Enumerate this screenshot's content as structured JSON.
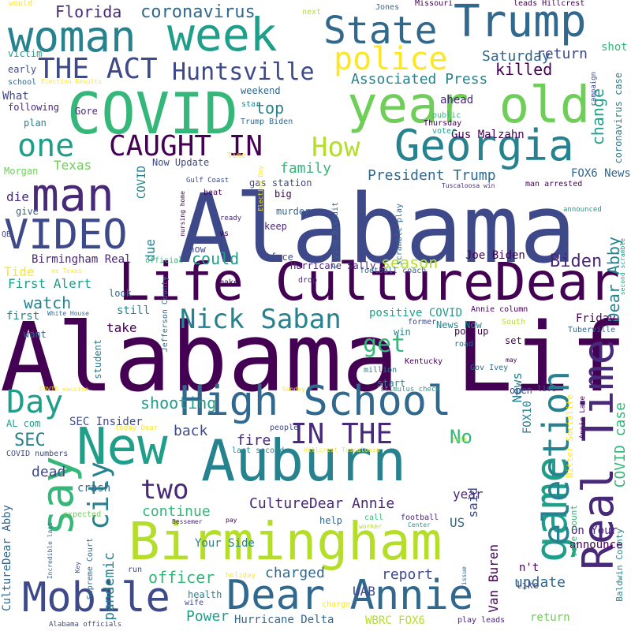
{
  "colors": {
    "v1": "#440154",
    "v2": "#482878",
    "v3": "#3e4989",
    "v4": "#31688e",
    "v5": "#26828e",
    "v6": "#1f9e89",
    "v7": "#35b779",
    "v8": "#6ece58",
    "v9": "#b5de2b",
    "v10": "#fde725"
  },
  "words": [
    {
      "id": "alabama-1",
      "text": "Alabama"
    },
    {
      "id": "alabama-life",
      "text": "Alabama Life"
    },
    {
      "id": "life-culturedear",
      "text": "Life CultureDear"
    },
    {
      "id": "covid",
      "text": "COVID"
    },
    {
      "id": "year-old",
      "text": "year old"
    },
    {
      "id": "woman",
      "text": "woman"
    },
    {
      "id": "week",
      "text": "week"
    },
    {
      "id": "trump",
      "text": "Trump"
    },
    {
      "id": "state",
      "text": "State"
    },
    {
      "id": "georgia",
      "text": "Georgia"
    },
    {
      "id": "man",
      "text": "man"
    },
    {
      "id": "video",
      "text": "VIDEO"
    },
    {
      "id": "new",
      "text": "New"
    },
    {
      "id": "auburn",
      "text": "Auburn"
    },
    {
      "id": "birmingham",
      "text": "Birmingham"
    },
    {
      "id": "high-school",
      "text": "High School"
    },
    {
      "id": "mobile",
      "text": "Mobile"
    },
    {
      "id": "dear-annie",
      "text": "Dear Annie"
    },
    {
      "id": "real-time",
      "text": "Real Time"
    },
    {
      "id": "game",
      "text": "game"
    },
    {
      "id": "election",
      "text": "election"
    },
    {
      "id": "say",
      "text": "say"
    },
    {
      "id": "police",
      "text": "police"
    },
    {
      "id": "the-act",
      "text": "THE ACT"
    },
    {
      "id": "huntsville",
      "text": "Huntsville"
    },
    {
      "id": "caught-in",
      "text": "CAUGHT IN"
    },
    {
      "id": "one",
      "text": "one"
    },
    {
      "id": "how",
      "text": "How"
    },
    {
      "id": "nick-saban",
      "text": "Nick Saban"
    },
    {
      "id": "day",
      "text": "Day"
    },
    {
      "id": "in-the",
      "text": "IN THE"
    },
    {
      "id": "city",
      "text": "city"
    },
    {
      "id": "two",
      "text": "two"
    },
    {
      "id": "get",
      "text": "get"
    },
    {
      "id": "florida",
      "text": "Florida"
    },
    {
      "id": "coronavirus",
      "text": "coronavirus"
    },
    {
      "id": "saturday",
      "text": "Saturday"
    },
    {
      "id": "killed",
      "text": "killed"
    },
    {
      "id": "associated-press",
      "text": "Associated Press"
    },
    {
      "id": "return",
      "text": "return"
    },
    {
      "id": "change",
      "text": "change"
    },
    {
      "id": "top",
      "text": "top"
    },
    {
      "id": "family",
      "text": "family"
    },
    {
      "id": "president-trump",
      "text": "President Trump"
    },
    {
      "id": "could",
      "text": "could"
    },
    {
      "id": "biden",
      "text": "Biden"
    },
    {
      "id": "watch",
      "text": "watch"
    },
    {
      "id": "season",
      "text": "season"
    },
    {
      "id": "dear-abby",
      "text": "Dear Abby"
    },
    {
      "id": "shooting",
      "text": "shooting"
    },
    {
      "id": "sec",
      "text": "SEC"
    },
    {
      "id": "no",
      "text": "No"
    },
    {
      "id": "back",
      "text": "back"
    },
    {
      "id": "fire",
      "text": "fire"
    },
    {
      "id": "dead",
      "text": "dead"
    },
    {
      "id": "culturedear-annie",
      "text": "CultureDear Annie"
    },
    {
      "id": "continue",
      "text": "continue"
    },
    {
      "id": "pandemic",
      "text": "pandemic"
    },
    {
      "id": "officer",
      "text": "officer"
    },
    {
      "id": "charged",
      "text": "charged"
    },
    {
      "id": "report",
      "text": "report"
    },
    {
      "id": "update",
      "text": "update"
    },
    {
      "id": "power",
      "text": "Power"
    },
    {
      "id": "hurricane-delta",
      "text": "Hurricane Delta"
    },
    {
      "id": "wbrc-fox6",
      "text": "WBRC FOX6"
    },
    {
      "id": "return-2",
      "text": "return"
    },
    {
      "id": "uab",
      "text": "UAB"
    },
    {
      "id": "van-buren",
      "text": "Van Buren"
    },
    {
      "id": "on-your",
      "text": "On Your"
    },
    {
      "id": "announce",
      "text": "announce"
    },
    {
      "id": "your-side",
      "text": "Your Side"
    },
    {
      "id": "us",
      "text": "US"
    },
    {
      "id": "said",
      "text": "said"
    },
    {
      "id": "year-2",
      "text": "year"
    },
    {
      "id": "news",
      "text": "News"
    },
    {
      "id": "fox10",
      "text": "FOX10"
    },
    {
      "id": "what",
      "text": "What"
    },
    {
      "id": "texas",
      "text": "Texas"
    },
    {
      "id": "die",
      "text": "die"
    },
    {
      "id": "due",
      "text": "due"
    },
    {
      "id": "tide",
      "text": "Tide"
    },
    {
      "id": "first-alert",
      "text": "First Alert"
    },
    {
      "id": "first",
      "text": "first"
    },
    {
      "id": "take",
      "text": "take"
    },
    {
      "id": "still",
      "text": "still"
    },
    {
      "id": "friday",
      "text": "Friday"
    },
    {
      "id": "birmingham-real",
      "text": "Birmingham Real"
    },
    {
      "id": "sec-insider",
      "text": "SEC Insider"
    },
    {
      "id": "crash",
      "text": "crash"
    },
    {
      "id": "fox6-news",
      "text": "FOX6 News"
    },
    {
      "id": "joe-biden",
      "text": "Joe Biden"
    },
    {
      "id": "shot",
      "text": "shot"
    },
    {
      "id": "ahead",
      "text": "ahead"
    },
    {
      "id": "gus-malzahn",
      "text": "Gus Malzahn"
    },
    {
      "id": "positive-covid",
      "text": "positive COVID"
    },
    {
      "id": "news-now",
      "text": "News Now"
    },
    {
      "id": "gas-station",
      "text": "gas station"
    },
    {
      "id": "murder",
      "text": "murder"
    },
    {
      "id": "keep",
      "text": "keep"
    },
    {
      "id": "face",
      "text": "face"
    },
    {
      "id": "big",
      "text": "big"
    },
    {
      "id": "now-update",
      "text": "Now Update"
    },
    {
      "id": "covid-v",
      "text": "COVID"
    },
    {
      "id": "covid-case",
      "text": "COVID case"
    },
    {
      "id": "coronavirus-case",
      "text": "coronavirus case"
    },
    {
      "id": "bitter-socialite",
      "text": "Bitter Socialite"
    },
    {
      "id": "baldwin-county",
      "text": "Baldwin County"
    },
    {
      "id": "vote-count",
      "text": "vote count"
    },
    {
      "id": "culturedear-abby",
      "text": "CultureDear Abby"
    },
    {
      "id": "weekend",
      "text": "weekend"
    },
    {
      "id": "trump-biden",
      "text": "Trump Biden"
    },
    {
      "id": "thursday",
      "text": "Thursday"
    },
    {
      "id": "public",
      "text": "public"
    },
    {
      "id": "voter",
      "text": "voter"
    },
    {
      "id": "star",
      "text": "star"
    },
    {
      "id": "following",
      "text": "following"
    },
    {
      "id": "plan",
      "text": "plan"
    },
    {
      "id": "gore",
      "text": "Gore"
    },
    {
      "id": "early",
      "text": "early"
    },
    {
      "id": "school",
      "text": "school"
    },
    {
      "id": "election-results",
      "text": "Election Results"
    },
    {
      "id": "victim",
      "text": "victim"
    },
    {
      "id": "would",
      "text": "would"
    },
    {
      "id": "next",
      "text": "next"
    },
    {
      "id": "jones",
      "text": "Jones"
    },
    {
      "id": "missouri",
      "text": "Missouri"
    },
    {
      "id": "leads-hillcrest",
      "text": "leads Hillcrest"
    },
    {
      "id": "campaign",
      "text": "campaign"
    },
    {
      "id": "morgan",
      "text": "Morgan"
    },
    {
      "id": "give",
      "text": "give"
    },
    {
      "id": "qb",
      "text": "QB"
    },
    {
      "id": "gulf-coast",
      "text": "Gulf Coast"
    },
    {
      "id": "beat",
      "text": "beat"
    },
    {
      "id": "ready",
      "text": "ready"
    },
    {
      "id": "nursing-home",
      "text": "nursing home"
    },
    {
      "id": "time",
      "text": "Time"
    },
    {
      "id": "vs",
      "text": "vs"
    },
    {
      "id": "show",
      "text": "Show"
    },
    {
      "id": "official",
      "text": "official"
    },
    {
      "id": "vs-texas",
      "text": "vs Texas"
    },
    {
      "id": "make",
      "text": "make"
    },
    {
      "id": "look",
      "text": "look"
    },
    {
      "id": "white-house",
      "text": "White House"
    },
    {
      "id": "jefferson-county",
      "text": "Jefferson County"
    },
    {
      "id": "hurricane-sally",
      "text": "Hurricane Sally"
    },
    {
      "id": "drop",
      "text": "drop"
    },
    {
      "id": "flying-biscuit",
      "text": "Flying Biscuit"
    },
    {
      "id": "election-day",
      "text": "Election Day"
    },
    {
      "id": "scramble-play",
      "text": "scramble play"
    },
    {
      "id": "tuscaloosa-win",
      "text": "Tuscaloosa win"
    },
    {
      "id": "man-arrested",
      "text": "man arrested"
    },
    {
      "id": "announced",
      "text": "announced"
    },
    {
      "id": "second-scramble",
      "text": "second scramble"
    },
    {
      "id": "football-coach",
      "text": "football coach"
    },
    {
      "id": "annie-column",
      "text": "Annie column"
    },
    {
      "id": "south",
      "text": "South"
    },
    {
      "id": "tuberville",
      "text": "Tuberville"
    },
    {
      "id": "former",
      "text": "former"
    },
    {
      "id": "pop-up",
      "text": "pop up"
    },
    {
      "id": "win",
      "text": "win"
    },
    {
      "id": "road",
      "text": "road"
    },
    {
      "id": "set",
      "text": "set"
    },
    {
      "id": "want",
      "text": "want"
    },
    {
      "id": "student",
      "text": "student"
    },
    {
      "id": "kentucky",
      "text": "Kentucky"
    },
    {
      "id": "million",
      "text": "million"
    },
    {
      "id": "gov-ivey",
      "text": "Gov Ivey"
    },
    {
      "id": "may",
      "text": "may"
    },
    {
      "id": "start",
      "text": "start"
    },
    {
      "id": "stimulus-check",
      "text": "stimulus check"
    },
    {
      "id": "sunday",
      "text": "Sunday"
    },
    {
      "id": "open",
      "text": "open"
    },
    {
      "id": "live",
      "text": "live"
    },
    {
      "id": "annie-lane",
      "text": "Annie Lane"
    },
    {
      "id": "covid-vaccine",
      "text": "COVID vaccine"
    },
    {
      "id": "al-com",
      "text": "AL com"
    },
    {
      "id": "today-dear",
      "text": "today Dear"
    },
    {
      "id": "people",
      "text": "people"
    },
    {
      "id": "talk",
      "text": "talk"
    },
    {
      "id": "covid-numbers",
      "text": "COVID numbers"
    },
    {
      "id": "last-second",
      "text": "last second"
    },
    {
      "id": "hillcrest-tuscaloosa",
      "text": "Hillcrest Tuscaloosa"
    },
    {
      "id": "bessemer",
      "text": "Bessemer"
    },
    {
      "id": "pay",
      "text": "pay"
    },
    {
      "id": "expected",
      "text": "expected"
    },
    {
      "id": "incredible-last",
      "text": "Incredible last"
    },
    {
      "id": "supreme-court",
      "text": "Supreme Court"
    },
    {
      "id": "run",
      "text": "run"
    },
    {
      "id": "key",
      "text": "Key"
    },
    {
      "id": "nt",
      "text": "n't"
    },
    {
      "id": "help",
      "text": "help"
    },
    {
      "id": "call",
      "text": "call"
    },
    {
      "id": "worker",
      "text": "worker"
    },
    {
      "id": "football",
      "text": "football"
    },
    {
      "id": "center",
      "text": "Center"
    },
    {
      "id": "issue",
      "text": "issue"
    },
    {
      "id": "like",
      "text": "like"
    },
    {
      "id": "health",
      "text": "health"
    },
    {
      "id": "wife",
      "text": "wife"
    },
    {
      "id": "holiday",
      "text": "holiday"
    },
    {
      "id": "charge",
      "text": "charge"
    },
    {
      "id": "play-leads",
      "text": "play leads"
    },
    {
      "id": "alabama-officials",
      "text": "Alabama officials"
    }
  ]
}
